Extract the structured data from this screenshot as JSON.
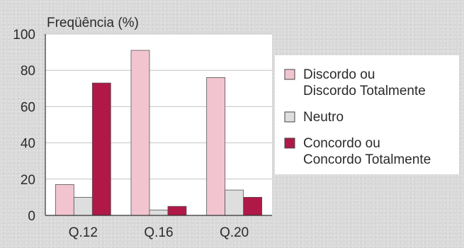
{
  "chart_data": {
    "type": "bar",
    "title": "",
    "ylabel": "Freqüência (%)",
    "xlabel": "",
    "ylim": [
      0,
      100
    ],
    "yticks": [
      0,
      20,
      40,
      60,
      80,
      100
    ],
    "categories": [
      "Q.12",
      "Q.16",
      "Q.20"
    ],
    "series": [
      {
        "name": "Discordo ou Discordo Totalmente",
        "legend_lines": [
          "Discordo ou",
          "Discordo Totalmente"
        ],
        "color": "#f2c4d0",
        "values": [
          17,
          91,
          76
        ]
      },
      {
        "name": "Neutro",
        "legend_lines": [
          "Neutro"
        ],
        "color": "#dedede",
        "values": [
          10,
          3,
          14
        ]
      },
      {
        "name": "Concordo ou Concordo Totalmente",
        "legend_lines": [
          "Concordo ou",
          "Concordo Totalmente"
        ],
        "color": "#b01848",
        "values": [
          73,
          5,
          10
        ]
      }
    ],
    "grid": true,
    "legend_position": "right"
  }
}
